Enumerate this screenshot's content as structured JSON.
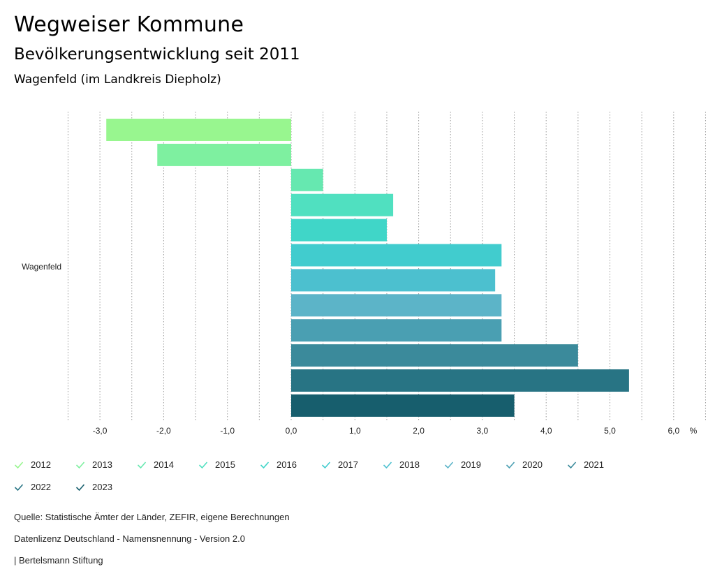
{
  "header": {
    "title": "Wegweiser Kommune",
    "subtitle": "Bevölkerungsentwicklung seit 2011",
    "region": "Wagenfeld (im Landkreis Diepholz)"
  },
  "chart_data": {
    "type": "bar",
    "orientation": "horizontal",
    "category": "Wagenfeld",
    "x_unit": "%",
    "xlim": [
      -3.5,
      6.5
    ],
    "x_ticks": [
      -3.0,
      -2.0,
      -1.0,
      0.0,
      1.0,
      2.0,
      3.0,
      4.0,
      5.0,
      6.0
    ],
    "x_tick_labels": [
      "-3,0",
      "-2,0",
      "-1,0",
      "0,0",
      "1,0",
      "2,0",
      "3,0",
      "4,0",
      "5,0",
      "6,0"
    ],
    "grid": "dotted vertical",
    "legend_position": "bottom",
    "series": [
      {
        "name": "2012",
        "value": -2.9,
        "color": "#98f68f"
      },
      {
        "name": "2013",
        "value": -2.1,
        "color": "#7ef0a0"
      },
      {
        "name": "2014",
        "value": 0.5,
        "color": "#66e8b0"
      },
      {
        "name": "2015",
        "value": 1.6,
        "color": "#50e0c0"
      },
      {
        "name": "2016",
        "value": 1.5,
        "color": "#40d6c8"
      },
      {
        "name": "2017",
        "value": 3.3,
        "color": "#41ccce"
      },
      {
        "name": "2018",
        "value": 3.2,
        "color": "#4cc0cf"
      },
      {
        "name": "2019",
        "value": 3.3,
        "color": "#5cb4c8"
      },
      {
        "name": "2020",
        "value": 3.3,
        "color": "#4a9fb2"
      },
      {
        "name": "2021",
        "value": 4.5,
        "color": "#3b8a9b"
      },
      {
        "name": "2022",
        "value": 5.3,
        "color": "#287484"
      },
      {
        "name": "2023",
        "value": 3.5,
        "color": "#175e6d"
      }
    ]
  },
  "footer": {
    "source": "Quelle: Statistische Ämter der Länder, ZEFIR, eigene Berechnungen",
    "license": "Datenlizenz Deutschland - Namensnennung - Version 2.0",
    "publisher": "| Bertelsmann Stiftung"
  }
}
